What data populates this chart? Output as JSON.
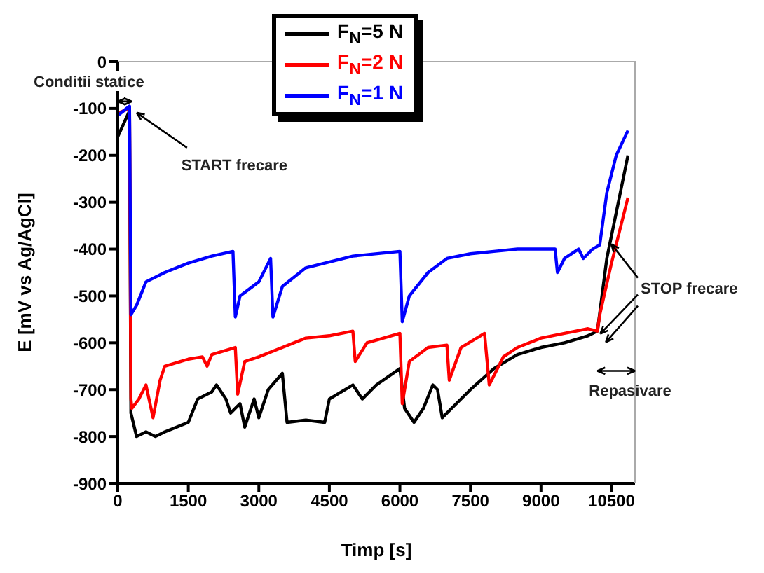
{
  "chart_data": {
    "type": "line",
    "xlabel": "Timp [s]",
    "ylabel": "E [mV vs Ag/AgCl]",
    "xlim": [
      0,
      11000
    ],
    "xticks": [
      0,
      1500,
      3000,
      4500,
      6000,
      7500,
      9000,
      10500
    ],
    "ylim": [
      -900,
      0
    ],
    "yticks": [
      0,
      -100,
      -200,
      -300,
      -400,
      -500,
      -600,
      -700,
      -800,
      -900
    ],
    "legend": "top",
    "marker": "none",
    "line_style": "solid",
    "annotations": [
      "Conditii statice",
      {
        "text": "START frecare",
        "x": 280,
        "y": -100
      },
      {
        "text": "STOP frecare",
        "x": 10200,
        "y": -575
      },
      "Repasivare"
    ],
    "series": [
      {
        "name": "F$_{N}$=5 N",
        "color": "#000000",
        "x": [
          0,
          250,
          280,
          400,
          600,
          800,
          1000,
          1500,
          1700,
          2000,
          2100,
          2300,
          2400,
          2600,
          2700,
          2900,
          3000,
          3200,
          3500,
          3600,
          4000,
          4400,
          4500,
          5000,
          5200,
          5500,
          6000,
          6100,
          6300,
          6500,
          6700,
          6800,
          6900,
          7200,
          7500,
          8000,
          8500,
          9000,
          9500,
          10000,
          10200,
          10400,
          10850
        ],
        "values": [
          -160,
          -105,
          -750,
          -800,
          -790,
          -800,
          -790,
          -770,
          -720,
          -705,
          -690,
          -720,
          -750,
          -730,
          -780,
          -720,
          -760,
          -700,
          -665,
          -770,
          -765,
          -770,
          -720,
          -690,
          -720,
          -690,
          -655,
          -740,
          -770,
          -740,
          -690,
          -700,
          -760,
          -730,
          -700,
          -655,
          -625,
          -610,
          -600,
          -585,
          -575,
          -420,
          -200
        ]
      },
      {
        "name": "F$_{N}$=2 N",
        "color": "#ff0000",
        "x": [
          0,
          250,
          280,
          300,
          450,
          600,
          750,
          900,
          1000,
          1500,
          1800,
          1900,
          2000,
          2500,
          2550,
          2700,
          3000,
          3500,
          4000,
          4500,
          5000,
          5050,
          5300,
          6000,
          6050,
          6200,
          6600,
          7000,
          7050,
          7300,
          7800,
          7900,
          8200,
          8500,
          9000,
          9500,
          10000,
          10200,
          10250,
          10500,
          10850
        ],
        "values": [
          -110,
          -100,
          -720,
          -740,
          -720,
          -690,
          -760,
          -680,
          -650,
          -635,
          -630,
          -650,
          -625,
          -610,
          -710,
          -640,
          -630,
          -610,
          -590,
          -585,
          -575,
          -640,
          -600,
          -580,
          -730,
          -640,
          -610,
          -605,
          -680,
          -610,
          -580,
          -690,
          -630,
          -610,
          -590,
          -580,
          -570,
          -575,
          -540,
          -430,
          -290
        ]
      },
      {
        "name": "F$_{N}$=1 N",
        "color": "#0000ff",
        "x": [
          0,
          250,
          280,
          400,
          600,
          1000,
          1500,
          2000,
          2450,
          2500,
          2600,
          3000,
          3250,
          3300,
          3500,
          4000,
          5000,
          6000,
          6050,
          6200,
          6600,
          7000,
          7500,
          8000,
          8500,
          9000,
          9300,
          9350,
          9500,
          9800,
          9900,
          10100,
          10250,
          10400,
          10600,
          10850
        ],
        "values": [
          -115,
          -95,
          -540,
          -520,
          -470,
          -450,
          -430,
          -415,
          -405,
          -545,
          -500,
          -470,
          -420,
          -545,
          -480,
          -440,
          -415,
          -405,
          -555,
          -500,
          -450,
          -420,
          -410,
          -405,
          -400,
          -400,
          -400,
          -450,
          -420,
          -400,
          -420,
          -400,
          -391,
          -280,
          -200,
          -147
        ]
      }
    ]
  }
}
